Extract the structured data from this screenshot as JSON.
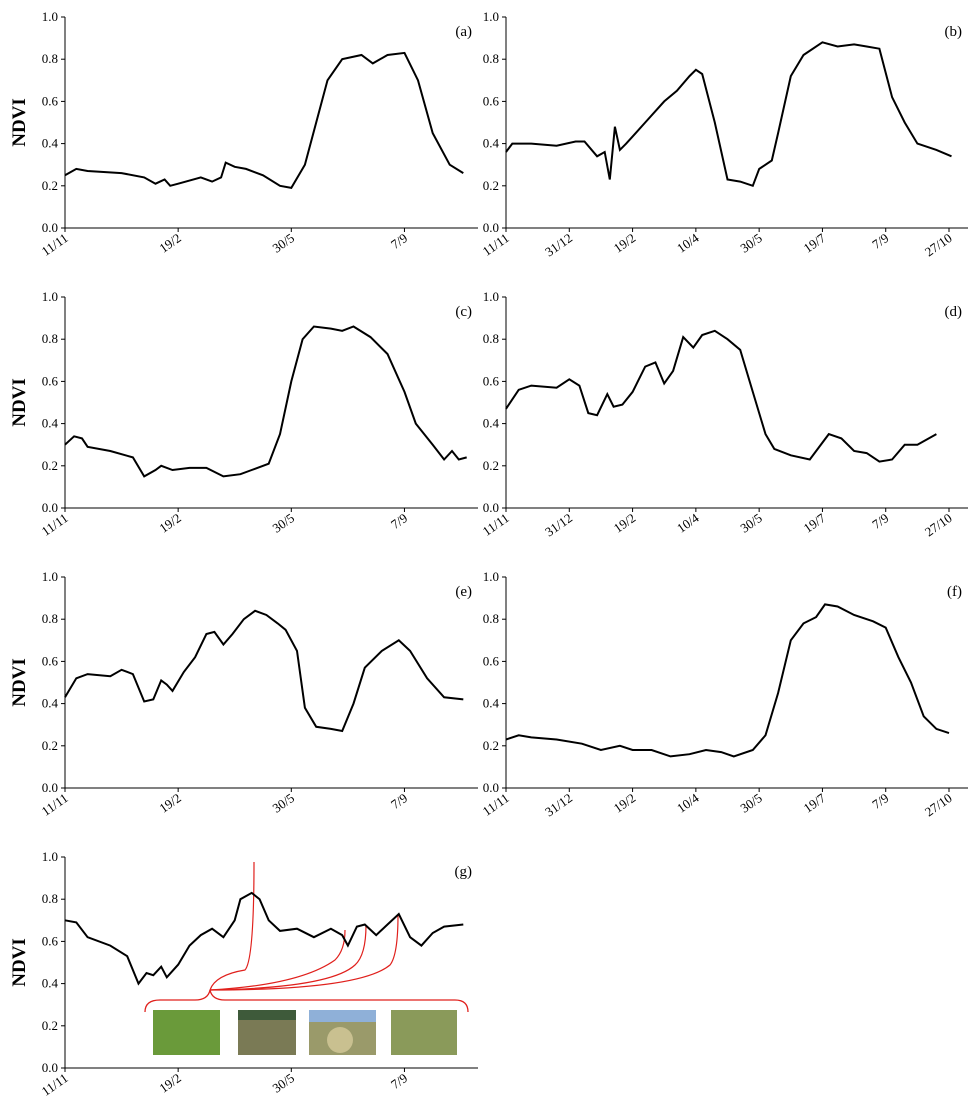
{
  "chart_data": [
    {
      "type": "line",
      "label": "(a)",
      "ylabel": "NDVI",
      "color": "#000000",
      "x": [
        0,
        10,
        20,
        50,
        70,
        80,
        88,
        93,
        100,
        120,
        130,
        138,
        142,
        150,
        160,
        175,
        190,
        200,
        212,
        222,
        232,
        245,
        262,
        272,
        285,
        300,
        312,
        325,
        340,
        352
      ],
      "values": [
        0.25,
        0.28,
        0.27,
        0.26,
        0.24,
        0.21,
        0.23,
        0.2,
        0.21,
        0.24,
        0.22,
        0.24,
        0.31,
        0.29,
        0.28,
        0.25,
        0.2,
        0.19,
        0.3,
        0.5,
        0.7,
        0.8,
        0.82,
        0.78,
        0.82,
        0.83,
        0.7,
        0.45,
        0.3,
        0.26
      ],
      "xlim": [
        0,
        365
      ],
      "xticks": [
        {
          "value": 0,
          "label": "11/11"
        },
        {
          "value": 100,
          "label": "19/2"
        },
        {
          "value": 200,
          "label": "30/5"
        },
        {
          "value": 300,
          "label": "7/9"
        }
      ],
      "ylim": [
        0,
        1
      ],
      "yticks": [
        {
          "value": 0,
          "label": "0.0"
        },
        {
          "value": 0.2,
          "label": "0.2"
        },
        {
          "value": 0.4,
          "label": "0.4"
        },
        {
          "value": 0.6,
          "label": "0.6"
        },
        {
          "value": 0.8,
          "label": "0.8"
        },
        {
          "value": 1,
          "label": "1.0"
        }
      ]
    },
    {
      "type": "line",
      "label": "(b)",
      "color": "#000000",
      "x": [
        0,
        5,
        20,
        40,
        55,
        62,
        72,
        78,
        82,
        86,
        90,
        95,
        110,
        125,
        135,
        145,
        150,
        155,
        165,
        175,
        185,
        195,
        200,
        210,
        215,
        225,
        235,
        250,
        262,
        275,
        285,
        295,
        305,
        315,
        325,
        340,
        352
      ],
      "values": [
        0.36,
        0.4,
        0.4,
        0.39,
        0.41,
        0.41,
        0.34,
        0.36,
        0.23,
        0.48,
        0.37,
        0.4,
        0.5,
        0.6,
        0.65,
        0.72,
        0.75,
        0.73,
        0.5,
        0.23,
        0.22,
        0.2,
        0.28,
        0.32,
        0.45,
        0.72,
        0.82,
        0.88,
        0.86,
        0.87,
        0.86,
        0.85,
        0.62,
        0.5,
        0.4,
        0.37,
        0.34
      ],
      "xlim": [
        0,
        365
      ],
      "xticks": [
        {
          "value": 0,
          "label": "11/11"
        },
        {
          "value": 50,
          "label": "31/12"
        },
        {
          "value": 100,
          "label": "19/2"
        },
        {
          "value": 150,
          "label": "10/4"
        },
        {
          "value": 200,
          "label": "30/5"
        },
        {
          "value": 250,
          "label": "19/7"
        },
        {
          "value": 300,
          "label": "7/9"
        },
        {
          "value": 350,
          "label": "27/10"
        }
      ],
      "ylim": [
        0,
        1
      ],
      "yticks": [
        {
          "value": 0,
          "label": "0.0"
        },
        {
          "value": 0.2,
          "label": "0.2"
        },
        {
          "value": 0.4,
          "label": "0.4"
        },
        {
          "value": 0.6,
          "label": "0.6"
        },
        {
          "value": 0.8,
          "label": "0.8"
        },
        {
          "value": 1,
          "label": "1.0"
        }
      ]
    },
    {
      "type": "line",
      "label": "(c)",
      "ylabel": "NDVI",
      "color": "#000000",
      "x": [
        0,
        8,
        15,
        20,
        40,
        60,
        70,
        80,
        85,
        95,
        110,
        125,
        140,
        155,
        165,
        180,
        190,
        200,
        210,
        220,
        235,
        245,
        255,
        270,
        285,
        300,
        310,
        325,
        335,
        342,
        348,
        355
      ],
      "values": [
        0.3,
        0.34,
        0.33,
        0.29,
        0.27,
        0.24,
        0.15,
        0.18,
        0.2,
        0.18,
        0.19,
        0.19,
        0.15,
        0.16,
        0.18,
        0.21,
        0.35,
        0.6,
        0.8,
        0.86,
        0.85,
        0.84,
        0.86,
        0.81,
        0.73,
        0.55,
        0.4,
        0.3,
        0.23,
        0.27,
        0.23,
        0.24
      ],
      "xlim": [
        0,
        365
      ],
      "xticks": [
        {
          "value": 0,
          "label": "11/11"
        },
        {
          "value": 100,
          "label": "19/2"
        },
        {
          "value": 200,
          "label": "30/5"
        },
        {
          "value": 300,
          "label": "7/9"
        }
      ],
      "ylim": [
        0,
        1
      ],
      "yticks": [
        {
          "value": 0,
          "label": "0.0"
        },
        {
          "value": 0.2,
          "label": "0.2"
        },
        {
          "value": 0.4,
          "label": "0.4"
        },
        {
          "value": 0.6,
          "label": "0.6"
        },
        {
          "value": 0.8,
          "label": "0.8"
        },
        {
          "value": 1,
          "label": "1.0"
        }
      ]
    },
    {
      "type": "line",
      "label": "(d)",
      "color": "#000000",
      "x": [
        0,
        10,
        20,
        40,
        50,
        58,
        65,
        72,
        80,
        85,
        92,
        100,
        110,
        118,
        125,
        132,
        140,
        148,
        155,
        165,
        175,
        185,
        195,
        205,
        212,
        225,
        240,
        255,
        265,
        275,
        285,
        295,
        305,
        315,
        325,
        340
      ],
      "values": [
        0.47,
        0.56,
        0.58,
        0.57,
        0.61,
        0.58,
        0.45,
        0.44,
        0.54,
        0.48,
        0.49,
        0.55,
        0.67,
        0.69,
        0.59,
        0.65,
        0.81,
        0.76,
        0.82,
        0.84,
        0.8,
        0.75,
        0.55,
        0.35,
        0.28,
        0.25,
        0.23,
        0.35,
        0.33,
        0.27,
        0.26,
        0.22,
        0.23,
        0.3,
        0.3,
        0.35
      ],
      "xlim": [
        0,
        365
      ],
      "xticks": [
        {
          "value": 0,
          "label": "11/11"
        },
        {
          "value": 50,
          "label": "31/12"
        },
        {
          "value": 100,
          "label": "19/2"
        },
        {
          "value": 150,
          "label": "10/4"
        },
        {
          "value": 200,
          "label": "30/5"
        },
        {
          "value": 250,
          "label": "19/7"
        },
        {
          "value": 300,
          "label": "7/9"
        },
        {
          "value": 350,
          "label": "27/10"
        }
      ],
      "ylim": [
        0,
        1
      ],
      "yticks": [
        {
          "value": 0,
          "label": "0.0"
        },
        {
          "value": 0.2,
          "label": "0.2"
        },
        {
          "value": 0.4,
          "label": "0.4"
        },
        {
          "value": 0.6,
          "label": "0.6"
        },
        {
          "value": 0.8,
          "label": "0.8"
        },
        {
          "value": 1,
          "label": "1.0"
        }
      ]
    },
    {
      "type": "line",
      "label": "(e)",
      "ylabel": "NDVI",
      "color": "#000000",
      "x": [
        0,
        10,
        20,
        40,
        50,
        60,
        70,
        78,
        85,
        90,
        95,
        105,
        115,
        125,
        132,
        140,
        148,
        158,
        168,
        178,
        188,
        195,
        205,
        212,
        222,
        235,
        245,
        255,
        265,
        280,
        295,
        305,
        320,
        335,
        352
      ],
      "values": [
        0.43,
        0.52,
        0.54,
        0.53,
        0.56,
        0.54,
        0.41,
        0.42,
        0.51,
        0.49,
        0.46,
        0.55,
        0.62,
        0.73,
        0.74,
        0.68,
        0.73,
        0.8,
        0.84,
        0.82,
        0.78,
        0.75,
        0.65,
        0.38,
        0.29,
        0.28,
        0.27,
        0.4,
        0.57,
        0.65,
        0.7,
        0.65,
        0.52,
        0.43,
        0.42
      ],
      "xlim": [
        0,
        365
      ],
      "xticks": [
        {
          "value": 0,
          "label": "11/11"
        },
        {
          "value": 100,
          "label": "19/2"
        },
        {
          "value": 200,
          "label": "30/5"
        },
        {
          "value": 300,
          "label": "7/9"
        }
      ],
      "ylim": [
        0,
        1
      ],
      "yticks": [
        {
          "value": 0,
          "label": "0.0"
        },
        {
          "value": 0.2,
          "label": "0.2"
        },
        {
          "value": 0.4,
          "label": "0.4"
        },
        {
          "value": 0.6,
          "label": "0.6"
        },
        {
          "value": 0.8,
          "label": "0.8"
        },
        {
          "value": 1,
          "label": "1.0"
        }
      ]
    },
    {
      "type": "line",
      "label": "(f)",
      "color": "#000000",
      "x": [
        0,
        10,
        20,
        40,
        60,
        75,
        90,
        100,
        115,
        130,
        145,
        158,
        170,
        180,
        195,
        205,
        215,
        225,
        235,
        245,
        252,
        262,
        275,
        290,
        300,
        310,
        320,
        330,
        340,
        350
      ],
      "values": [
        0.23,
        0.25,
        0.24,
        0.23,
        0.21,
        0.18,
        0.2,
        0.18,
        0.18,
        0.15,
        0.16,
        0.18,
        0.17,
        0.15,
        0.18,
        0.25,
        0.45,
        0.7,
        0.78,
        0.81,
        0.87,
        0.86,
        0.82,
        0.79,
        0.76,
        0.62,
        0.5,
        0.34,
        0.28,
        0.26
      ],
      "xlim": [
        0,
        365
      ],
      "xticks": [
        {
          "value": 0,
          "label": "11/11"
        },
        {
          "value": 50,
          "label": "31/12"
        },
        {
          "value": 100,
          "label": "19/2"
        },
        {
          "value": 150,
          "label": "10/4"
        },
        {
          "value": 200,
          "label": "30/5"
        },
        {
          "value": 250,
          "label": "19/7"
        },
        {
          "value": 300,
          "label": "7/9"
        },
        {
          "value": 350,
          "label": "27/10"
        }
      ],
      "ylim": [
        0,
        1
      ],
      "yticks": [
        {
          "value": 0,
          "label": "0.0"
        },
        {
          "value": 0.2,
          "label": "0.2"
        },
        {
          "value": 0.4,
          "label": "0.4"
        },
        {
          "value": 0.6,
          "label": "0.6"
        },
        {
          "value": 0.8,
          "label": "0.8"
        },
        {
          "value": 1,
          "label": "1.0"
        }
      ]
    },
    {
      "type": "line",
      "label": "(g)",
      "ylabel": "NDVI",
      "color": "#000000",
      "x": [
        0,
        10,
        20,
        40,
        55,
        65,
        72,
        78,
        85,
        90,
        100,
        110,
        120,
        130,
        140,
        150,
        155,
        165,
        172,
        180,
        190,
        205,
        220,
        235,
        245,
        250,
        258,
        265,
        275,
        285,
        295,
        305,
        315,
        325,
        335,
        352
      ],
      "values": [
        0.7,
        0.69,
        0.62,
        0.58,
        0.53,
        0.4,
        0.45,
        0.44,
        0.48,
        0.43,
        0.49,
        0.58,
        0.63,
        0.66,
        0.62,
        0.7,
        0.8,
        0.83,
        0.8,
        0.7,
        0.65,
        0.66,
        0.62,
        0.66,
        0.63,
        0.58,
        0.67,
        0.68,
        0.63,
        0.68,
        0.73,
        0.62,
        0.58,
        0.64,
        0.67,
        0.68
      ],
      "xlim": [
        0,
        365
      ],
      "xticks": [
        {
          "value": 0,
          "label": "11/11"
        },
        {
          "value": 100,
          "label": "19/2"
        },
        {
          "value": 200,
          "label": "30/5"
        },
        {
          "value": 300,
          "label": "7/9"
        }
      ],
      "ylim": [
        0,
        1
      ],
      "yticks": [
        {
          "value": 0,
          "label": "0.0"
        },
        {
          "value": 0.2,
          "label": "0.2"
        },
        {
          "value": 0.4,
          "label": "0.4"
        },
        {
          "value": 0.6,
          "label": "0.6"
        },
        {
          "value": 0.8,
          "label": "0.8"
        },
        {
          "value": 1,
          "label": "1.0"
        }
      ]
    }
  ]
}
